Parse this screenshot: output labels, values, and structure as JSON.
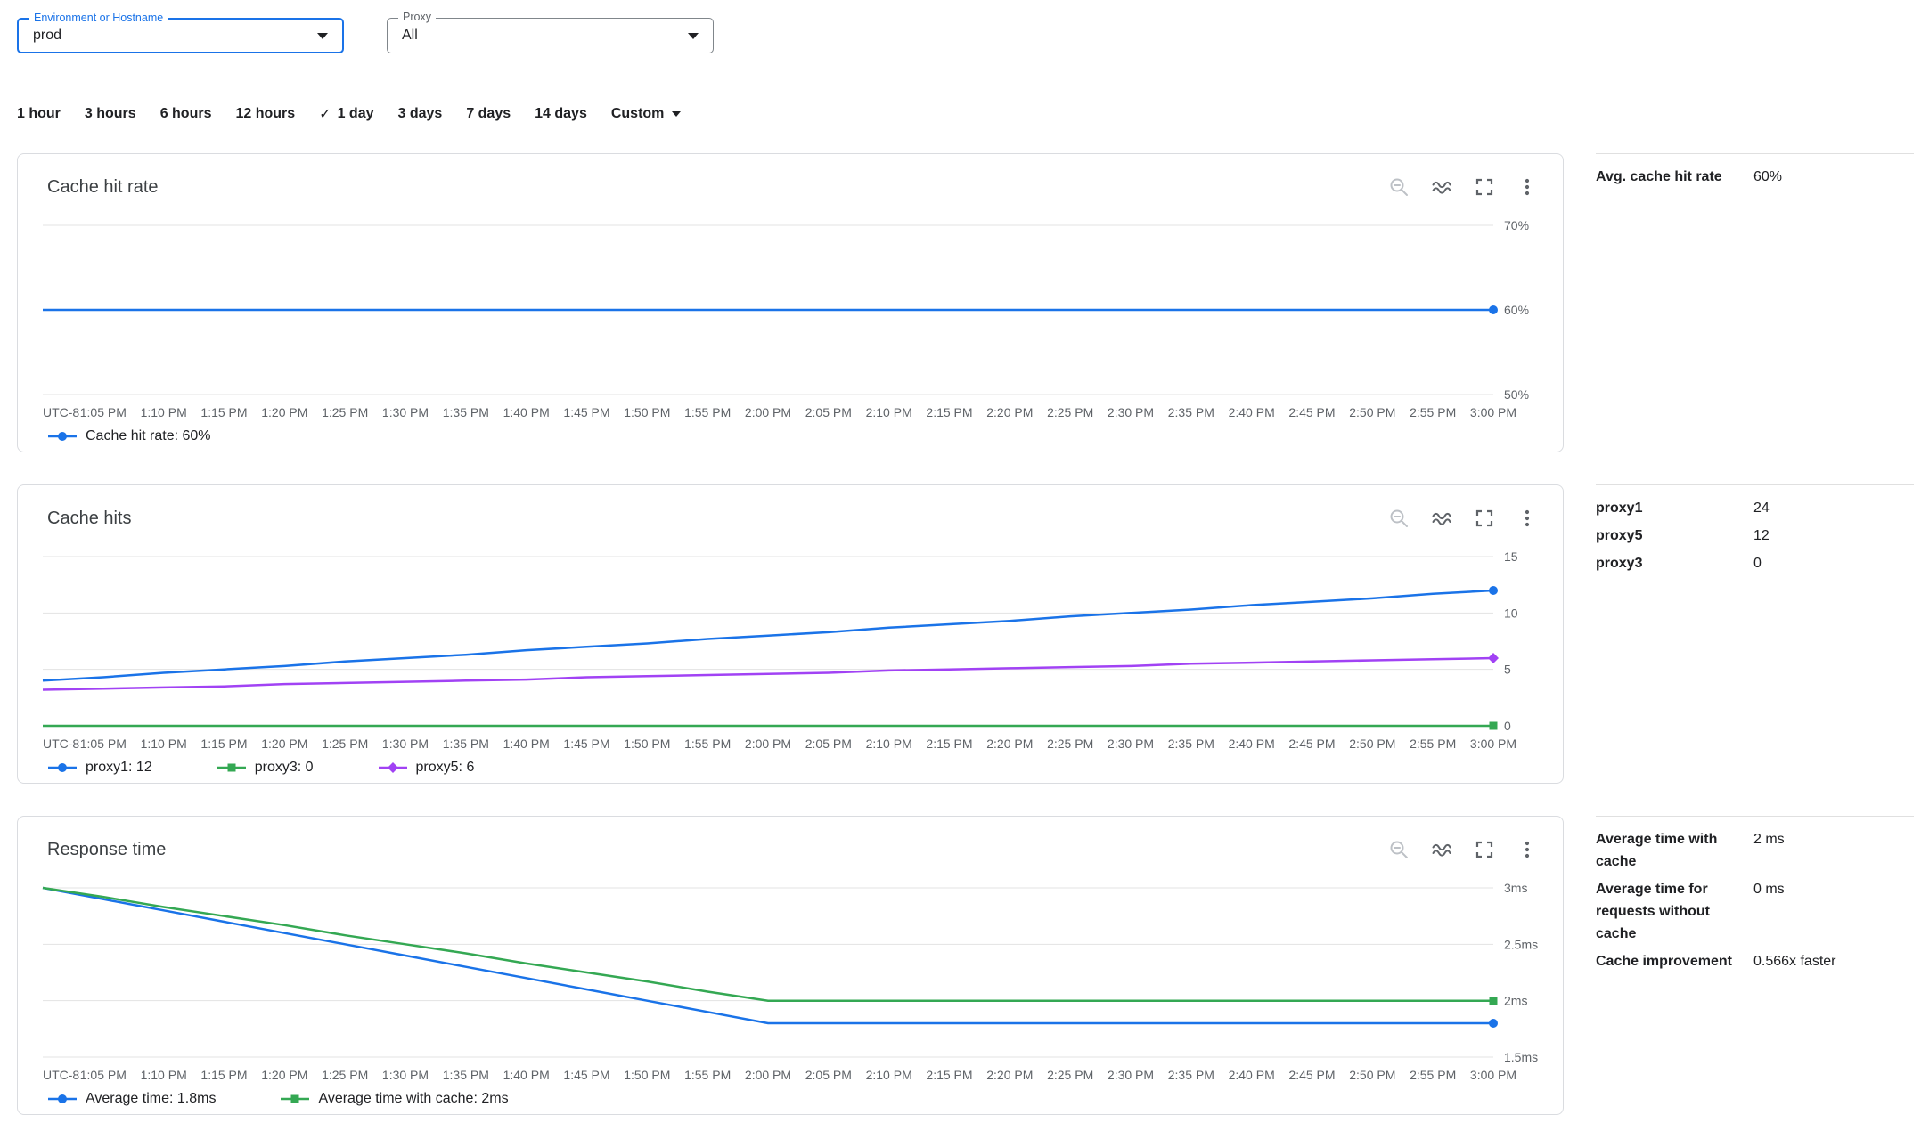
{
  "filters": {
    "environment": {
      "label": "Environment or Hostname",
      "value": "prod"
    },
    "proxy": {
      "label": "Proxy",
      "value": "All"
    }
  },
  "time_ranges": {
    "options": [
      "1 hour",
      "3 hours",
      "6 hours",
      "12 hours",
      "1 day",
      "3 days",
      "7 days",
      "14 days"
    ],
    "selected": "1 day",
    "custom": "Custom"
  },
  "toolbar_icons": [
    "zoom-out-icon",
    "smooth-line-icon",
    "fullscreen-icon",
    "more-vert-icon"
  ],
  "colors": {
    "blue": "#1a73e8",
    "green": "#34a853",
    "purple": "#a142f4",
    "grid": "#e3e3e3",
    "axis_text": "#5f6368"
  },
  "x_labels": [
    "UTC-8",
    "1:05 PM",
    "1:10 PM",
    "1:15 PM",
    "1:20 PM",
    "1:25 PM",
    "1:30 PM",
    "1:35 PM",
    "1:40 PM",
    "1:45 PM",
    "1:50 PM",
    "1:55 PM",
    "2:00 PM",
    "2:05 PM",
    "2:10 PM",
    "2:15 PM",
    "2:20 PM",
    "2:25 PM",
    "2:30 PM",
    "2:35 PM",
    "2:40 PM",
    "2:45 PM",
    "2:50 PM",
    "2:55 PM",
    "3:00 PM"
  ],
  "chart_data": [
    {
      "id": "cache-hit-rate",
      "type": "line",
      "title": "Cache hit rate",
      "ylim": [
        50,
        70
      ],
      "yticks": [
        {
          "value": 70,
          "label": "70%"
        },
        {
          "value": 60,
          "label": "60%"
        },
        {
          "value": 50,
          "label": "50%"
        }
      ],
      "series": [
        {
          "name": "Cache hit rate",
          "color": "#1a73e8",
          "marker": "circle",
          "values": [
            60,
            60,
            60,
            60,
            60,
            60,
            60,
            60,
            60,
            60,
            60,
            60,
            60,
            60,
            60,
            60,
            60,
            60,
            60,
            60,
            60,
            60,
            60,
            60,
            60
          ]
        }
      ],
      "legend": [
        {
          "label": "Cache hit rate: 60%",
          "color": "#1a73e8",
          "marker": "circle"
        }
      ]
    },
    {
      "id": "cache-hits",
      "type": "line",
      "title": "Cache hits",
      "ylim": [
        0,
        15
      ],
      "yticks": [
        {
          "value": 15,
          "label": "15"
        },
        {
          "value": 10,
          "label": "10"
        },
        {
          "value": 5,
          "label": "5"
        },
        {
          "value": 0,
          "label": "0"
        }
      ],
      "series": [
        {
          "name": "proxy1",
          "color": "#1a73e8",
          "marker": "circle",
          "values": [
            4,
            4.3,
            4.7,
            5,
            5.3,
            5.7,
            6,
            6.3,
            6.7,
            7,
            7.3,
            7.7,
            8,
            8.3,
            8.7,
            9,
            9.3,
            9.7,
            10,
            10.3,
            10.7,
            11,
            11.3,
            11.7,
            12
          ]
        },
        {
          "name": "proxy3",
          "color": "#34a853",
          "marker": "square",
          "values": [
            0,
            0,
            0,
            0,
            0,
            0,
            0,
            0,
            0,
            0,
            0,
            0,
            0,
            0,
            0,
            0,
            0,
            0,
            0,
            0,
            0,
            0,
            0,
            0,
            0
          ]
        },
        {
          "name": "proxy5",
          "color": "#a142f4",
          "marker": "diamond",
          "values": [
            3.2,
            3.3,
            3.4,
            3.5,
            3.7,
            3.8,
            3.9,
            4,
            4.1,
            4.3,
            4.4,
            4.5,
            4.6,
            4.7,
            4.9,
            5,
            5.1,
            5.2,
            5.3,
            5.5,
            5.6,
            5.7,
            5.8,
            5.9,
            6
          ]
        }
      ],
      "legend": [
        {
          "label": "proxy1: 12",
          "color": "#1a73e8",
          "marker": "circle"
        },
        {
          "label": "proxy3: 0",
          "color": "#34a853",
          "marker": "square"
        },
        {
          "label": "proxy5: 6",
          "color": "#a142f4",
          "marker": "diamond"
        }
      ]
    },
    {
      "id": "response-time",
      "type": "line",
      "title": "Response time",
      "ylim": [
        1.5,
        3
      ],
      "yticks": [
        {
          "value": 3,
          "label": "3ms"
        },
        {
          "value": 2.5,
          "label": "2.5ms"
        },
        {
          "value": 2,
          "label": "2ms"
        },
        {
          "value": 1.5,
          "label": "1.5ms"
        }
      ],
      "series": [
        {
          "name": "Average time",
          "color": "#1a73e8",
          "marker": "circle",
          "values": [
            3,
            2.9,
            2.8,
            2.7,
            2.6,
            2.5,
            2.4,
            2.3,
            2.2,
            2.1,
            2,
            1.9,
            1.8,
            1.8,
            1.8,
            1.8,
            1.8,
            1.8,
            1.8,
            1.8,
            1.8,
            1.8,
            1.8,
            1.8,
            1.8
          ]
        },
        {
          "name": "Average time with cache",
          "color": "#34a853",
          "marker": "square",
          "values": [
            3,
            2.92,
            2.83,
            2.75,
            2.67,
            2.58,
            2.5,
            2.42,
            2.33,
            2.25,
            2.17,
            2.08,
            2,
            2,
            2,
            2,
            2,
            2,
            2,
            2,
            2,
            2,
            2,
            2,
            2
          ]
        }
      ],
      "legend": [
        {
          "label": "Average time: 1.8ms",
          "color": "#1a73e8",
          "marker": "circle"
        },
        {
          "label": "Average time with cache: 2ms",
          "color": "#34a853",
          "marker": "square"
        }
      ]
    }
  ],
  "side_panels": [
    {
      "rows": [
        {
          "label": "Avg. cache hit rate",
          "value": "60%"
        }
      ]
    },
    {
      "rows": [
        {
          "label": "proxy1",
          "value": "24"
        },
        {
          "label": "proxy5",
          "value": "12"
        },
        {
          "label": "proxy3",
          "value": "0"
        }
      ]
    },
    {
      "rows": [
        {
          "label": "Average time with cache",
          "value": "2 ms"
        },
        {
          "label": "Average time for requests without cache",
          "value": "0 ms"
        },
        {
          "label": "Cache improvement",
          "value": "0.566x faster"
        }
      ]
    }
  ]
}
